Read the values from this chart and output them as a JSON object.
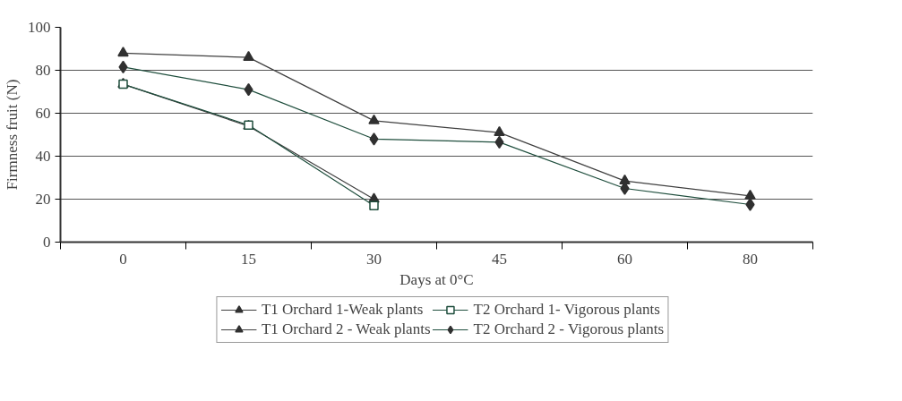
{
  "chart_data": {
    "type": "line",
    "xlabel": "Days at 0°C",
    "ylabel": "Firmness fruit (N)",
    "categories": [
      "0",
      "15",
      "30",
      "45",
      "60",
      "80"
    ],
    "ylim": [
      0,
      100
    ],
    "yticks": [
      0,
      20,
      40,
      60,
      80,
      100
    ],
    "grid": "y",
    "legend": "bottom",
    "series": [
      {
        "name": "T1 Orchard 1-Weak plants",
        "color": "#404040",
        "marker": "triangle",
        "values": [
          73.5,
          54,
          20,
          null,
          null,
          null
        ]
      },
      {
        "name": "T2 Orchard 1- Vigorous plants",
        "color": "#1f4e3d",
        "marker": "square",
        "values": [
          73.5,
          54.5,
          17,
          null,
          null,
          null
        ]
      },
      {
        "name": "T1 Orchard 2 - Weak plants",
        "color": "#404040",
        "marker": "triangle",
        "values": [
          88,
          86,
          56.5,
          51,
          28.5,
          21.5
        ]
      },
      {
        "name": "T2 Orchard 2 - Vigorous plants",
        "color": "#1f4e3d",
        "marker": "diamond",
        "values": [
          81.5,
          71,
          48,
          46.5,
          25,
          17.5
        ]
      }
    ]
  }
}
